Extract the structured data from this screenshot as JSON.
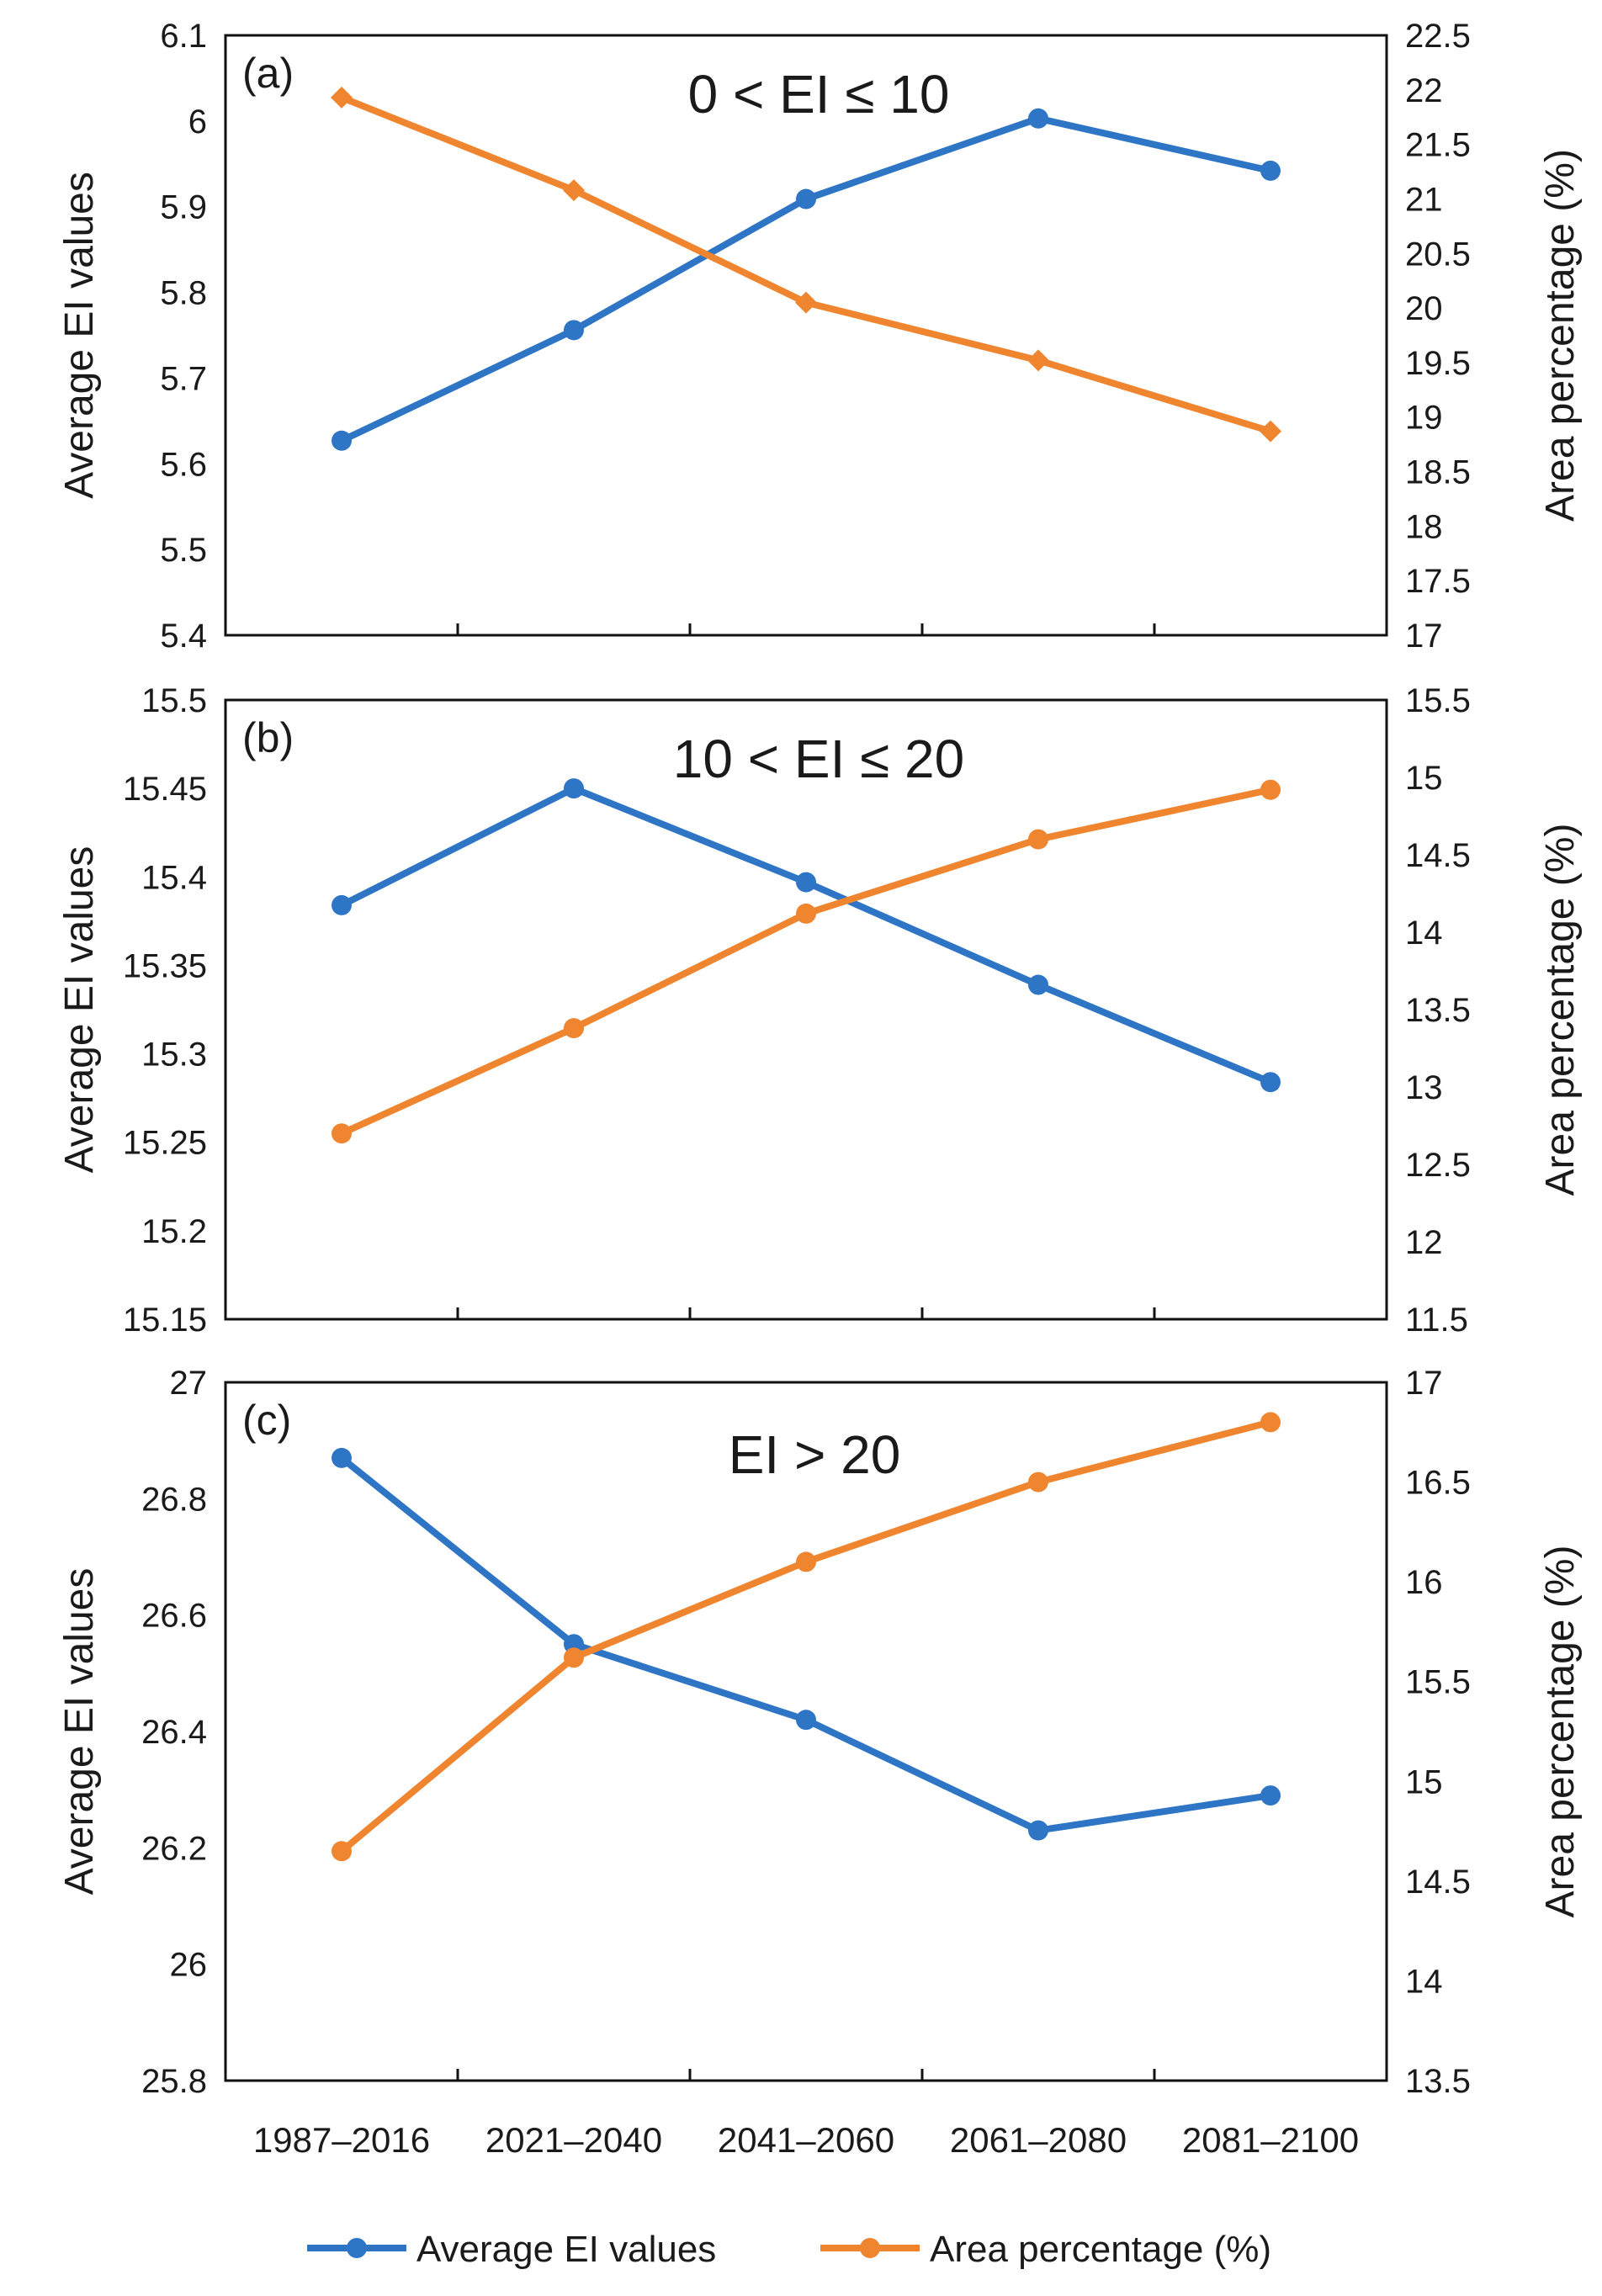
{
  "chart_data": [
    {
      "type": "line",
      "panel_label": "(a)",
      "title": "0 < EI ≤ 10",
      "categories": [
        "1987–2016",
        "2021–2040",
        "2041–2060",
        "2061–2080",
        "2081–2100"
      ],
      "ylabel": "Average EI values",
      "y2label": "Area percentage (%)",
      "ylim": [
        5.4,
        6.1
      ],
      "y2lim": [
        17,
        22.5
      ],
      "yticks": [
        "5.4",
        "5.5",
        "5.6",
        "5.7",
        "5.8",
        "5.9",
        "6",
        "6.1"
      ],
      "y2ticks": [
        "17",
        "17.5",
        "18",
        "18.5",
        "19",
        "19.5",
        "20",
        "20.5",
        "21",
        "21.5",
        "22",
        "22.5"
      ],
      "series": [
        {
          "name": "Average EI values",
          "axis": "left",
          "color": "#2E75C5",
          "marker": "circle",
          "values": [
            5.627,
            5.756,
            5.909,
            6.003,
            5.942
          ]
        },
        {
          "name": "Area percentage (%)",
          "axis": "right",
          "color": "#F08530",
          "marker": "diamond",
          "values": [
            21.93,
            21.08,
            20.05,
            19.52,
            18.87
          ]
        }
      ]
    },
    {
      "type": "line",
      "panel_label": "(b)",
      "title": "10 < EI ≤ 20",
      "categories": [
        "1987–2016",
        "2021–2040",
        "2041–2060",
        "2061–2080",
        "2081–2100"
      ],
      "ylabel": "Average EI values",
      "y2label": "Area percentage (%)",
      "ylim": [
        15.15,
        15.5
      ],
      "y2lim": [
        11.5,
        15.5
      ],
      "yticks": [
        "15.15",
        "15.2",
        "15.25",
        "15.3",
        "15.35",
        "15.4",
        "15.45",
        "15.5"
      ],
      "y2ticks": [
        "11.5",
        "12",
        "12.5",
        "13",
        "13.5",
        "14",
        "14.5",
        "15",
        "15.5"
      ],
      "series": [
        {
          "name": "Average EI values",
          "axis": "left",
          "color": "#2E75C5",
          "marker": "circle",
          "values": [
            15.384,
            15.45,
            15.397,
            15.339,
            15.284
          ]
        },
        {
          "name": "Area percentage (%)",
          "axis": "right",
          "color": "#F08530",
          "marker": "circle",
          "values": [
            12.7,
            13.38,
            14.12,
            14.6,
            14.92
          ]
        }
      ]
    },
    {
      "type": "line",
      "panel_label": "(c)",
      "title": "EI > 20",
      "categories": [
        "1987–2016",
        "2021–2040",
        "2041–2060",
        "2061–2080",
        "2081–2100"
      ],
      "ylabel": "Average EI values",
      "y2label": "Area percentage (%)",
      "ylim": [
        25.8,
        27
      ],
      "y2lim": [
        13.5,
        17
      ],
      "yticks": [
        "25.8",
        "26",
        "26.2",
        "26.4",
        "26.6",
        "26.8",
        "27"
      ],
      "y2ticks": [
        "13.5",
        "14",
        "14.5",
        "15",
        "15.5",
        "16",
        "16.5",
        "17"
      ],
      "series": [
        {
          "name": "Average EI values",
          "axis": "left",
          "color": "#2E75C5",
          "marker": "circle",
          "values": [
            26.87,
            26.55,
            26.42,
            26.23,
            26.29
          ]
        },
        {
          "name": "Area percentage (%)",
          "axis": "right",
          "color": "#F08530",
          "marker": "circle",
          "values": [
            14.65,
            15.62,
            16.1,
            16.5,
            16.8
          ]
        }
      ]
    }
  ],
  "legend": {
    "items": [
      {
        "label": "Average EI values",
        "color": "#2E75C5"
      },
      {
        "label": "Area percentage (%)",
        "color": "#F08530"
      }
    ]
  }
}
